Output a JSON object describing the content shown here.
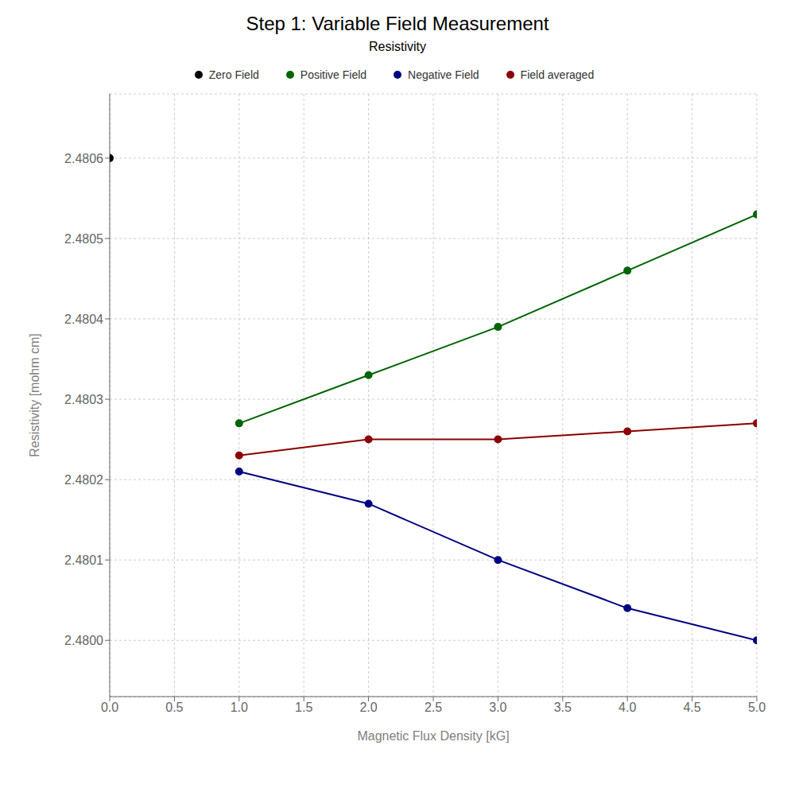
{
  "chart_data": {
    "type": "line",
    "title": "Step 1: Variable Field Measurement",
    "subtitle": "Resistivity",
    "x_label": "Magnetic Flux Density [kG]",
    "y_label": "Resistivity [mohm cm]",
    "x": [
      0.0,
      1.0,
      2.0,
      3.0,
      4.0,
      5.0
    ],
    "series": [
      {
        "name": "Zero Field",
        "color": "#000000",
        "marker": "circle",
        "line_style": "none",
        "values": [
          2.4806,
          null,
          null,
          null,
          null,
          null
        ]
      },
      {
        "name": "Positive Field",
        "color": "#006400",
        "marker": "circle",
        "line_style": "solid",
        "values": [
          null,
          2.48027,
          2.48033,
          2.48039,
          2.48046,
          2.48053
        ]
      },
      {
        "name": "Negative Field",
        "color": "#000080",
        "marker": "circle",
        "line_style": "solid",
        "values": [
          null,
          2.48021,
          2.48017,
          2.4801,
          2.48004,
          2.48
        ]
      },
      {
        "name": "Field averaged",
        "color": "#8B0000",
        "marker": "circle",
        "line_style": "solid",
        "values": [
          null,
          2.48023,
          2.48025,
          2.48025,
          2.48026,
          2.48027
        ]
      }
    ],
    "xlim": [
      0.0,
      5.0
    ],
    "ylim": [
      2.47993,
      2.48068
    ],
    "xticks": [
      {
        "value": 0.0,
        "label": "0.0"
      },
      0.5,
      {
        "value": 1.0,
        "label": "1.0"
      },
      1.5,
      {
        "value": 2.0,
        "label": "2.0"
      },
      2.5,
      {
        "value": 3.0,
        "label": "3.0"
      },
      3.5,
      {
        "value": 4.0,
        "label": "4.0"
      },
      4.5,
      {
        "value": 5.0,
        "label": "5.0"
      }
    ],
    "yticks": [
      {
        "value": 2.48,
        "label": "2.4800"
      },
      {
        "value": 2.4801,
        "label": "2.4801"
      },
      {
        "value": 2.4802,
        "label": "2.4802"
      },
      {
        "value": 2.4803,
        "label": "2.4803"
      },
      {
        "value": 2.4804,
        "label": "2.4804"
      },
      {
        "value": 2.4805,
        "label": "2.4805"
      },
      {
        "value": 2.4806,
        "label": "2.4806"
      }
    ],
    "grid": true
  }
}
